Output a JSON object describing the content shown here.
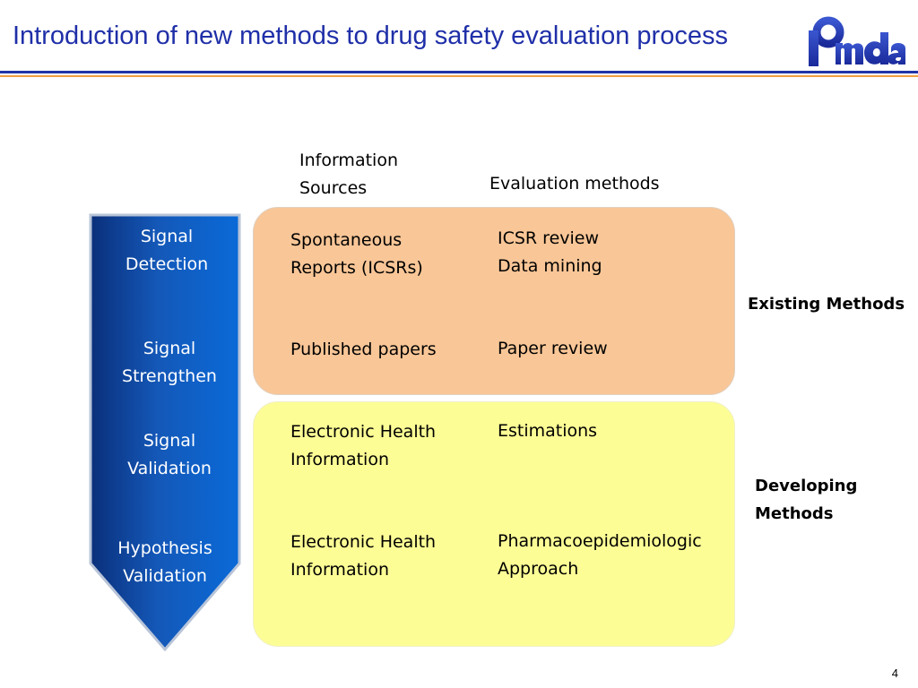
{
  "title": "Introduction of new methods to drug safety evaluation process",
  "logo": {
    "text": "Pmda",
    "color": "#1f35a8"
  },
  "headers": {
    "info_sources": "Information\nSources",
    "eval_methods": "Evaluation methods"
  },
  "stages": [
    "Signal\nDetection",
    "Signal\nStrengthen",
    "Signal\nValidation",
    "Hypothesis\nValidation"
  ],
  "existing": {
    "label": "Existing Methods",
    "color": "#f9c697",
    "rows": [
      {
        "source": "Spontaneous\nReports (ICSRs)",
        "method": "ICSR review\nData mining"
      },
      {
        "source": "Published papers",
        "method": "Paper review"
      }
    ]
  },
  "developing": {
    "label": "Developing\nMethods",
    "color": "#fdfd96",
    "rows": [
      {
        "source": "Electronic Health\nInformation",
        "method": "Estimations"
      },
      {
        "source": "Electronic Health\nInformation",
        "method": "Pharmacoepidemiologic\nApproach"
      }
    ]
  },
  "page_number": "4"
}
